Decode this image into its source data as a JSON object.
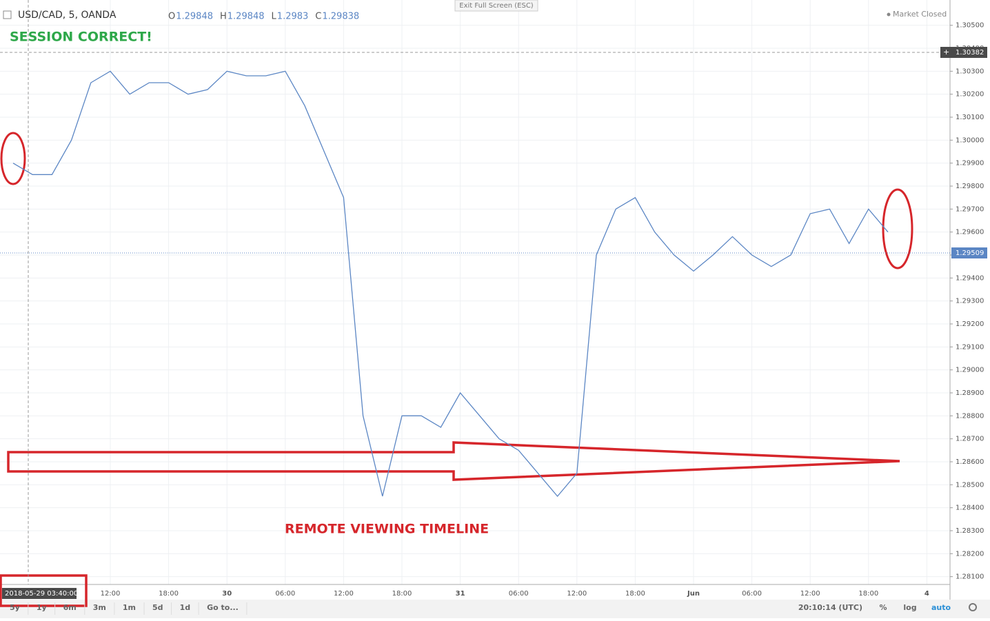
{
  "chart_data": {
    "type": "line",
    "title": "USD/CAD, 5, OANDA",
    "ohlc": [
      {
        "label": "O",
        "value": 1.29848
      },
      {
        "label": "H",
        "value": 1.29848
      },
      {
        "label": "L",
        "value": 1.2983
      },
      {
        "label": "C",
        "value": 1.29838
      }
    ],
    "exit_button": "Exit Full Screen (ESC)",
    "market_status": "Market Closed",
    "annotations": [
      "SESSION CORRECT!",
      "REMOTE VIEWING TIMELINE"
    ],
    "crosshair": {
      "price": 1.30382,
      "time": "2018-05-29 03:40:00"
    },
    "last_price": 1.29509,
    "color": "#5b86c4",
    "grid": true,
    "categories": [
      null,
      null,
      null,
      null,
      null,
      "12:00",
      null,
      null,
      "18:00",
      null,
      null,
      "30",
      null,
      null,
      "06:00",
      null,
      null,
      "12:00",
      null,
      null,
      "18:00",
      null,
      null,
      "31",
      null,
      null,
      "06:00",
      null,
      null,
      "12:00",
      null,
      null,
      "18:00",
      null,
      null,
      "Jun",
      null,
      null,
      "06:00",
      null,
      null,
      "12:00",
      null,
      null,
      "18:00",
      null,
      null,
      "4"
    ],
    "values": [
      1.299,
      1.2985,
      1.2985,
      1.3,
      1.3025,
      1.303,
      1.302,
      1.3025,
      1.3025,
      1.302,
      1.3022,
      1.303,
      1.3028,
      1.3028,
      1.303,
      1.3015,
      1.2995,
      1.2975,
      1.288,
      1.2845,
      1.288,
      1.288,
      1.2875,
      1.289,
      1.288,
      1.287,
      1.2865,
      1.2855,
      1.2845,
      1.2855,
      1.295,
      1.297,
      1.2975,
      1.296,
      1.295,
      1.2943,
      1.295,
      1.2958,
      1.295,
      1.2945,
      1.295,
      1.2968,
      1.297,
      1.2955,
      1.297,
      1.296,
      null,
      null
    ],
    "ylim": [
      1.28,
      1.3061
    ],
    "yticks": [
      {
        "value": 1.305,
        "label": "1.30500"
      },
      {
        "value": 1.304,
        "label": "1.30400"
      },
      {
        "value": 1.303,
        "label": "1.30300"
      },
      {
        "value": 1.302,
        "label": "1.30200"
      },
      {
        "value": 1.301,
        "label": "1.30100"
      },
      {
        "value": 1.3,
        "label": "1.30000"
      },
      {
        "value": 1.299,
        "label": "1.29900"
      },
      {
        "value": 1.298,
        "label": "1.29800"
      },
      {
        "value": 1.297,
        "label": "1.29700"
      },
      {
        "value": 1.296,
        "label": "1.29600"
      },
      {
        "value": 1.295,
        "label": "1.29500"
      },
      {
        "value": 1.294,
        "label": "1.29400"
      },
      {
        "value": 1.293,
        "label": "1.29300"
      },
      {
        "value": 1.292,
        "label": "1.29200"
      },
      {
        "value": 1.291,
        "label": "1.29100"
      },
      {
        "value": 1.29,
        "label": "1.29000"
      },
      {
        "value": 1.289,
        "label": "1.28900"
      },
      {
        "value": 1.288,
        "label": "1.28800"
      },
      {
        "value": 1.287,
        "label": "1.28700"
      },
      {
        "value": 1.286,
        "label": "1.28600"
      },
      {
        "value": 1.285,
        "label": "1.28500"
      },
      {
        "value": 1.284,
        "label": "1.28400"
      },
      {
        "value": 1.283,
        "label": "1.28300"
      },
      {
        "value": 1.282,
        "label": "1.28200"
      },
      {
        "value": 1.281,
        "label": "1.28100"
      }
    ],
    "toolbar": [
      "5y",
      "1y",
      "6m",
      "3m",
      "1m",
      "5d",
      "1d",
      "Go to..."
    ],
    "clock": "20:10:14 (UTC)",
    "scale_buttons": [
      "%",
      "log",
      "auto"
    ]
  }
}
